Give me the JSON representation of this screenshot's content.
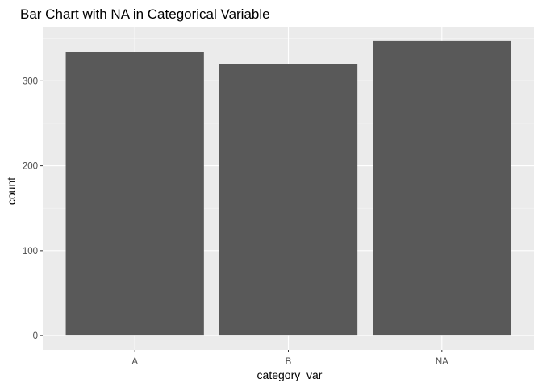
{
  "chart_data": {
    "type": "bar",
    "title": "Bar Chart with NA in Categorical Variable",
    "xlabel": "category_var",
    "ylabel": "count",
    "categories": [
      "A",
      "B",
      "NA"
    ],
    "values": [
      334,
      320,
      347
    ],
    "ylim": [
      -17,
      364
    ],
    "yticks": [
      0,
      100,
      200,
      300
    ],
    "ytick_labels": [
      "0",
      "100",
      "200",
      "300"
    ],
    "grid": true,
    "legend": "none",
    "colors": {
      "bar": "#595959",
      "panel_background": "#ebebeb",
      "grid_major": "#ffffff",
      "grid_minor": "#f5f5f5",
      "axis_text": "#4d4d4d",
      "tick": "#333333"
    }
  }
}
